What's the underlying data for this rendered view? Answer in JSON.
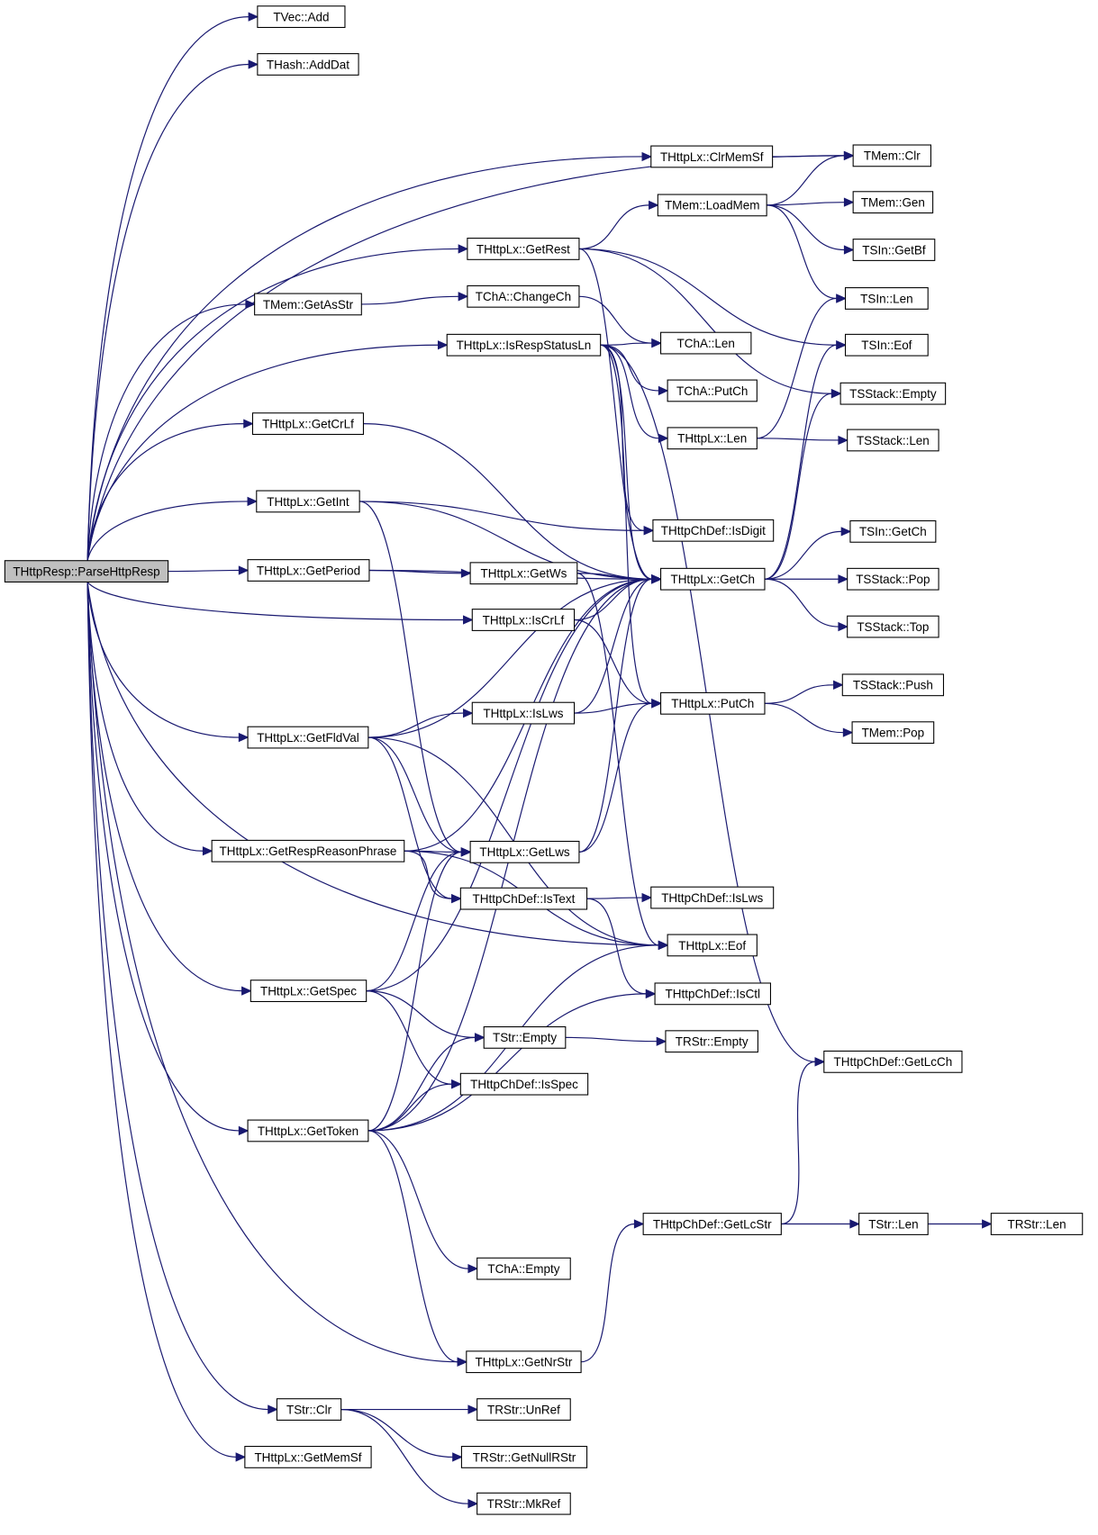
{
  "graph": {
    "type": "call-graph",
    "root": "THttpResp::ParseHttpResp",
    "colors": {
      "edge": "#191970",
      "root_fill": "#bfbfbf",
      "node_fill": "#ffffff",
      "node_border": "#000000"
    },
    "nodes": [
      "THttpResp::ParseHttpResp",
      "TVec::Add",
      "THash::AddDat",
      "TMem::Clr",
      "THttpLx::ClrMemSf",
      "TMem::LoadMem",
      "TMem::Gen",
      "TSIn::GetBf",
      "THttpLx::GetRest",
      "TSIn::Len",
      "TMem::GetAsStr",
      "TChA::ChangeCh",
      "TSIn::Eof",
      "TChA::Len",
      "THttpLx::IsRespStatusLn",
      "TChA::PutCh",
      "TSStack::Empty",
      "THttpLx::Len",
      "TSStack::Len",
      "THttpLx::GetCrLf",
      "THttpLx::GetInt",
      "THttpChDef::IsDigit",
      "TSIn::GetCh",
      "THttpLx::GetPeriod",
      "THttpLx::GetWs",
      "THttpLx::GetCh",
      "TSStack::Pop",
      "THttpLx::IsCrLf",
      "TSStack::Top",
      "TSStack::Push",
      "THttpLx::PutCh",
      "THttpLx::IsLws",
      "TMem::Pop",
      "THttpLx::GetFldVal",
      "THttpLx::GetRespReasonPhrase",
      "THttpLx::GetLws",
      "THttpChDef::IsText",
      "THttpChDef::IsLws",
      "THttpLx::Eof",
      "THttpLx::GetSpec",
      "THttpChDef::IsCtl",
      "TStr::Empty",
      "TRStr::Empty",
      "THttpChDef::GetLcCh",
      "THttpChDef::IsSpec",
      "THttpLx::GetToken",
      "THttpChDef::GetLcStr",
      "TStr::Len",
      "TRStr::Len",
      "TChA::Empty",
      "THttpLx::GetNrStr",
      "TStr::Clr",
      "TRStr::UnRef",
      "TRStr::GetNullRStr",
      "THttpLx::GetMemSf",
      "TRStr::MkRef"
    ],
    "edges": [
      [
        "THttpResp::ParseHttpResp",
        "TVec::Add"
      ],
      [
        "THttpResp::ParseHttpResp",
        "THash::AddDat"
      ],
      [
        "THttpResp::ParseHttpResp",
        "TMem::Clr"
      ],
      [
        "THttpResp::ParseHttpResp",
        "THttpLx::ClrMemSf"
      ],
      [
        "THttpResp::ParseHttpResp",
        "THttpLx::GetRest"
      ],
      [
        "THttpResp::ParseHttpResp",
        "TMem::GetAsStr"
      ],
      [
        "THttpResp::ParseHttpResp",
        "THttpLx::IsRespStatusLn"
      ],
      [
        "THttpResp::ParseHttpResp",
        "THttpLx::GetCrLf"
      ],
      [
        "THttpResp::ParseHttpResp",
        "THttpLx::GetInt"
      ],
      [
        "THttpResp::ParseHttpResp",
        "THttpLx::GetPeriod"
      ],
      [
        "THttpResp::ParseHttpResp",
        "THttpLx::IsCrLf"
      ],
      [
        "THttpResp::ParseHttpResp",
        "THttpLx::GetFldVal"
      ],
      [
        "THttpResp::ParseHttpResp",
        "THttpLx::GetRespReasonPhrase"
      ],
      [
        "THttpResp::ParseHttpResp",
        "THttpLx::GetSpec"
      ],
      [
        "THttpResp::ParseHttpResp",
        "THttpLx::GetToken"
      ],
      [
        "THttpResp::ParseHttpResp",
        "THttpLx::Eof"
      ],
      [
        "THttpResp::ParseHttpResp",
        "THttpLx::GetNrStr"
      ],
      [
        "THttpResp::ParseHttpResp",
        "TStr::Clr"
      ],
      [
        "THttpResp::ParseHttpResp",
        "THttpLx::GetMemSf"
      ],
      [
        "THttpLx::ClrMemSf",
        "TMem::Clr"
      ],
      [
        "THttpLx::GetRest",
        "TMem::LoadMem"
      ],
      [
        "THttpLx::GetRest",
        "TSIn::Eof"
      ],
      [
        "THttpLx::GetRest",
        "TSStack::Empty"
      ],
      [
        "THttpLx::GetRest",
        "THttpLx::GetCh"
      ],
      [
        "TMem::LoadMem",
        "TMem::Clr"
      ],
      [
        "TMem::LoadMem",
        "TMem::Gen"
      ],
      [
        "TMem::LoadMem",
        "TSIn::GetBf"
      ],
      [
        "TMem::LoadMem",
        "TSIn::Len"
      ],
      [
        "TMem::GetAsStr",
        "TChA::ChangeCh"
      ],
      [
        "TChA::ChangeCh",
        "TChA::Len"
      ],
      [
        "THttpLx::IsRespStatusLn",
        "TChA::Len"
      ],
      [
        "THttpLx::IsRespStatusLn",
        "TChA::PutCh"
      ],
      [
        "THttpLx::IsRespStatusLn",
        "THttpLx::Len"
      ],
      [
        "THttpLx::IsRespStatusLn",
        "THttpChDef::IsDigit"
      ],
      [
        "THttpLx::IsRespStatusLn",
        "THttpLx::GetCh"
      ],
      [
        "THttpLx::IsRespStatusLn",
        "THttpLx::PutCh"
      ],
      [
        "THttpLx::IsRespStatusLn",
        "THttpChDef::GetLcCh"
      ],
      [
        "THttpLx::Len",
        "TSIn::Len"
      ],
      [
        "THttpLx::Len",
        "TSStack::Len"
      ],
      [
        "THttpLx::GetCrLf",
        "THttpLx::GetCh"
      ],
      [
        "THttpLx::GetInt",
        "THttpChDef::IsDigit"
      ],
      [
        "THttpLx::GetInt",
        "THttpLx::GetCh"
      ],
      [
        "THttpLx::GetInt",
        "THttpLx::GetLws"
      ],
      [
        "THttpLx::GetPeriod",
        "THttpLx::GetWs"
      ],
      [
        "THttpLx::GetPeriod",
        "THttpLx::GetCh"
      ],
      [
        "THttpLx::GetWs",
        "THttpLx::GetCh"
      ],
      [
        "THttpLx::GetWs",
        "THttpLx::Eof"
      ],
      [
        "THttpLx::GetCh",
        "TSIn::GetCh"
      ],
      [
        "THttpLx::GetCh",
        "TSStack::Pop"
      ],
      [
        "THttpLx::GetCh",
        "TSStack::Top"
      ],
      [
        "THttpLx::GetCh",
        "TSIn::Eof"
      ],
      [
        "THttpLx::GetCh",
        "TSStack::Empty"
      ],
      [
        "THttpLx::IsCrLf",
        "THttpLx::GetCh"
      ],
      [
        "THttpLx::IsCrLf",
        "THttpLx::PutCh"
      ],
      [
        "THttpLx::IsLws",
        "THttpLx::GetCh"
      ],
      [
        "THttpLx::IsLws",
        "THttpLx::PutCh"
      ],
      [
        "THttpLx::PutCh",
        "TSStack::Push"
      ],
      [
        "THttpLx::PutCh",
        "TMem::Pop"
      ],
      [
        "THttpLx::GetFldVal",
        "THttpLx::GetCh"
      ],
      [
        "THttpLx::GetFldVal",
        "THttpLx::IsLws"
      ],
      [
        "THttpLx::GetFldVal",
        "THttpLx::GetLws"
      ],
      [
        "THttpLx::GetFldVal",
        "THttpChDef::IsText"
      ],
      [
        "THttpLx::GetFldVal",
        "THttpLx::Eof"
      ],
      [
        "THttpLx::GetRespReasonPhrase",
        "THttpLx::GetLws"
      ],
      [
        "THttpLx::GetRespReasonPhrase",
        "THttpChDef::IsText"
      ],
      [
        "THttpLx::GetRespReasonPhrase",
        "THttpLx::GetCh"
      ],
      [
        "THttpLx::GetRespReasonPhrase",
        "THttpLx::Eof"
      ],
      [
        "THttpLx::GetLws",
        "THttpLx::GetCh"
      ],
      [
        "THttpLx::GetLws",
        "THttpLx::PutCh"
      ],
      [
        "THttpChDef::IsText",
        "THttpChDef::IsLws"
      ],
      [
        "THttpChDef::IsText",
        "THttpChDef::IsCtl"
      ],
      [
        "THttpLx::GetSpec",
        "THttpLx::GetLws"
      ],
      [
        "THttpLx::GetSpec",
        "THttpLx::GetCh"
      ],
      [
        "THttpLx::GetSpec",
        "TStr::Empty"
      ],
      [
        "THttpLx::GetSpec",
        "THttpChDef::IsSpec"
      ],
      [
        "TStr::Empty",
        "TRStr::Empty"
      ],
      [
        "THttpLx::GetToken",
        "THttpLx::GetLws"
      ],
      [
        "THttpLx::GetToken",
        "TStr::Empty"
      ],
      [
        "THttpLx::GetToken",
        "THttpChDef::IsSpec"
      ],
      [
        "THttpLx::GetToken",
        "THttpChDef::IsCtl"
      ],
      [
        "THttpLx::GetToken",
        "THttpLx::Eof"
      ],
      [
        "THttpLx::GetToken",
        "THttpLx::GetCh"
      ],
      [
        "THttpLx::GetToken",
        "TChA::Empty"
      ],
      [
        "THttpLx::GetToken",
        "THttpLx::GetNrStr"
      ],
      [
        "THttpLx::GetNrStr",
        "THttpChDef::GetLcStr"
      ],
      [
        "THttpChDef::GetLcStr",
        "THttpChDef::GetLcCh"
      ],
      [
        "THttpChDef::GetLcStr",
        "TStr::Len"
      ],
      [
        "TStr::Len",
        "TRStr::Len"
      ],
      [
        "TStr::Clr",
        "TRStr::UnRef"
      ],
      [
        "TStr::Clr",
        "TRStr::GetNullRStr"
      ],
      [
        "TStr::Clr",
        "TRStr::MkRef"
      ]
    ]
  }
}
